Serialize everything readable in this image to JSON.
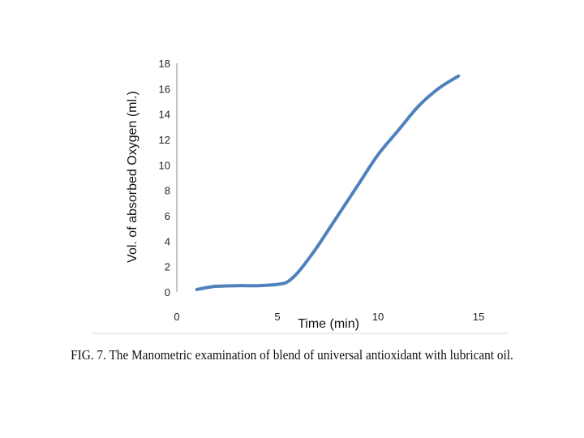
{
  "chart_data": {
    "type": "line",
    "title": "",
    "xlabel": "Time (min)",
    "ylabel": "Vol. of absorbed Oxygen (ml.)",
    "xlim": [
      0,
      15
    ],
    "ylim": [
      0,
      18
    ],
    "xticks": [
      "0",
      "5",
      "10",
      "15"
    ],
    "yticks": [
      "0",
      "2",
      "4",
      "6",
      "8",
      "10",
      "12",
      "14",
      "16",
      "18"
    ],
    "grid": false,
    "series": [
      {
        "color": "#4f81bd",
        "x": [
          1,
          1.5,
          2,
          3,
          4,
          5,
          5.5,
          6,
          6.5,
          7,
          8,
          9,
          10,
          11,
          12,
          13,
          14
        ],
        "y": [
          0.2,
          0.35,
          0.45,
          0.5,
          0.5,
          0.6,
          0.8,
          1.5,
          2.5,
          3.6,
          6.0,
          8.4,
          10.8,
          12.7,
          14.6,
          16.0,
          17.0
        ]
      }
    ]
  },
  "caption": "FIG. 7. The Manometric examination of blend of universal antioxidant with lubricant oil."
}
